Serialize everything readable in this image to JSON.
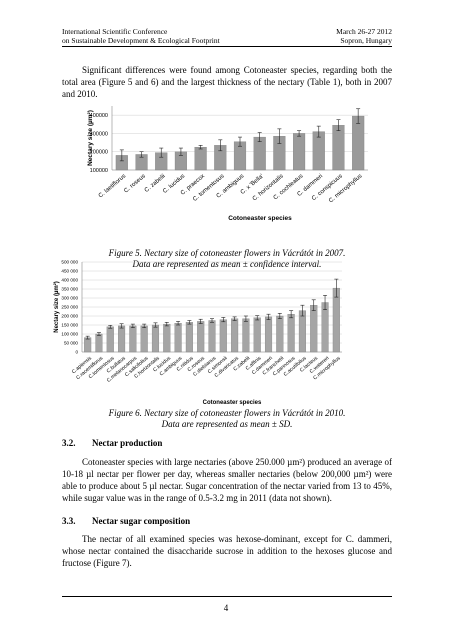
{
  "header": {
    "left": [
      "International Scientific Conference",
      "on Sustainable Development & Ecological Footprint"
    ],
    "right": [
      "March 26-27 2012",
      "Sopron, Hungary"
    ]
  },
  "intro": "Significant differences were found among Cotoneaster species, regarding both the total area (Figure 5 and 6) and the largest thickness of the nectary (Table 1), both in 2007 and 2010.",
  "chart_data": [
    {
      "type": "bar",
      "ylabel": "Nectary size (µm²)",
      "xlabel": "Cotoneaster species",
      "color": "#9a9a9a",
      "grid": true,
      "caption": [
        "Figure 5. Nectary size of cotoneaster flowers in Vácrátót in 2007.",
        "Data are represented as mean ± confidence interval."
      ],
      "categories": [
        "C. laetiflorus",
        "C. roseus",
        "C. zabelii",
        "C. lucidus",
        "C. praecox",
        "C. tomentosus",
        "C. ambiguus",
        "C. x 'Bella'",
        "C. horizontalis",
        "C. cochleatus",
        "C. dammeri",
        "C. conspicuus",
        "C. microphyllus"
      ],
      "values": [
        180000,
        185000,
        195000,
        200000,
        225000,
        235000,
        255000,
        280000,
        285000,
        300000,
        310000,
        345000,
        395000
      ],
      "errors": [
        30000,
        15000,
        25000,
        20000,
        10000,
        30000,
        25000,
        25000,
        40000,
        15000,
        30000,
        30000,
        40000
      ],
      "ylim": [
        100000,
        450000
      ],
      "yticks": [
        100000,
        200000,
        300000,
        400000
      ]
    },
    {
      "type": "bar",
      "ylabel": "Nectary size (µm²)",
      "xlabel": "Cotoneaster species",
      "color": "#a5a5a5",
      "grid": true,
      "caption": [
        "Figure 6. Nectary size of cotoneaster flowers in Vácrátót in 2010.",
        "Data are represented as mean ± SD."
      ],
      "categories": [
        "C.apiensis",
        "C.racemiflorus",
        "C.tomentosus",
        "C.bullatus",
        "C.melanocarpus",
        "C.salicifolius",
        "C.horizontalis",
        "C.lucidus",
        "C.ambiguus",
        "C.nitidus",
        "C.roseus",
        "C.dielsianus",
        "C.simonsii",
        "C.divaricatus",
        "C.zabelii",
        "C.affinis",
        "C.dammeri",
        "C.franchetii",
        "C.pannosus",
        "C.acutifolius",
        "C.lacteus",
        "C.watereri",
        "C.microphyllus"
      ],
      "values": [
        80000,
        100000,
        140000,
        145000,
        145000,
        145000,
        150000,
        155000,
        160000,
        165000,
        170000,
        175000,
        180000,
        185000,
        185000,
        190000,
        195000,
        200000,
        210000,
        230000,
        260000,
        275000,
        355000
      ],
      "errors": [
        8000,
        8000,
        8000,
        12000,
        10000,
        10000,
        12000,
        10000,
        10000,
        10000,
        12000,
        10000,
        12000,
        10000,
        15000,
        12000,
        15000,
        15000,
        20000,
        30000,
        30000,
        40000,
        50000
      ],
      "ylim": [
        0,
        500000
      ],
      "yticks": [
        0,
        {
          "value": 50000,
          "label": "50 000"
        },
        {
          "value": 100000,
          "label": "100 000"
        },
        {
          "value": 150000,
          "label": "150 000"
        },
        {
          "value": 200000,
          "label": "200 000"
        },
        {
          "value": 250000,
          "label": "250 000"
        },
        {
          "value": 300000,
          "label": "300 000"
        },
        {
          "value": 350000,
          "label": "350 000"
        },
        {
          "value": 400000,
          "label": "400 000"
        },
        {
          "value": 450000,
          "label": "450 000"
        },
        {
          "value": 500000,
          "label": "500 000"
        }
      ]
    }
  ],
  "sections": [
    {
      "heading": "3.2.",
      "title": "Nectar production",
      "text": "Cotoneaster species with large nectaries (above 250.000 µm²) produced an average of 10-18 µl nectar per flower per day, whereas smaller nectaries (below 200,000 µm²) were able to produce about 5 µl nectar. Sugar concentration of the nectar varied from 13 to 45%, while sugar value was in the range of 0.5-3.2 mg in 2011 (data not shown)."
    },
    {
      "heading": "3.3.",
      "title": "Nectar sugar composition",
      "text": "The nectar of all examined species was hexose-dominant, except for C. dammeri, whose nectar contained the disaccharide sucrose in addition to the hexoses glucose and fructose (Figure 7)."
    }
  ],
  "page_number": "4"
}
